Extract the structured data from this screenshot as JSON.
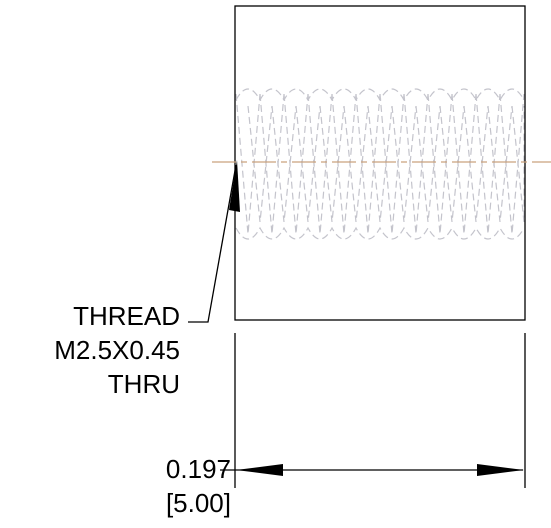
{
  "thread_note": {
    "line1": "THREAD",
    "line2": "M2.5X0.45",
    "line3": "THRU"
  },
  "width_dimension": {
    "imperial": "0.197",
    "metric": "[5.00]"
  },
  "colors": {
    "outline": "#000000",
    "hidden_thread": "#c4c4cc",
    "centerline": "#c9a27e",
    "background": "#ffffff"
  }
}
